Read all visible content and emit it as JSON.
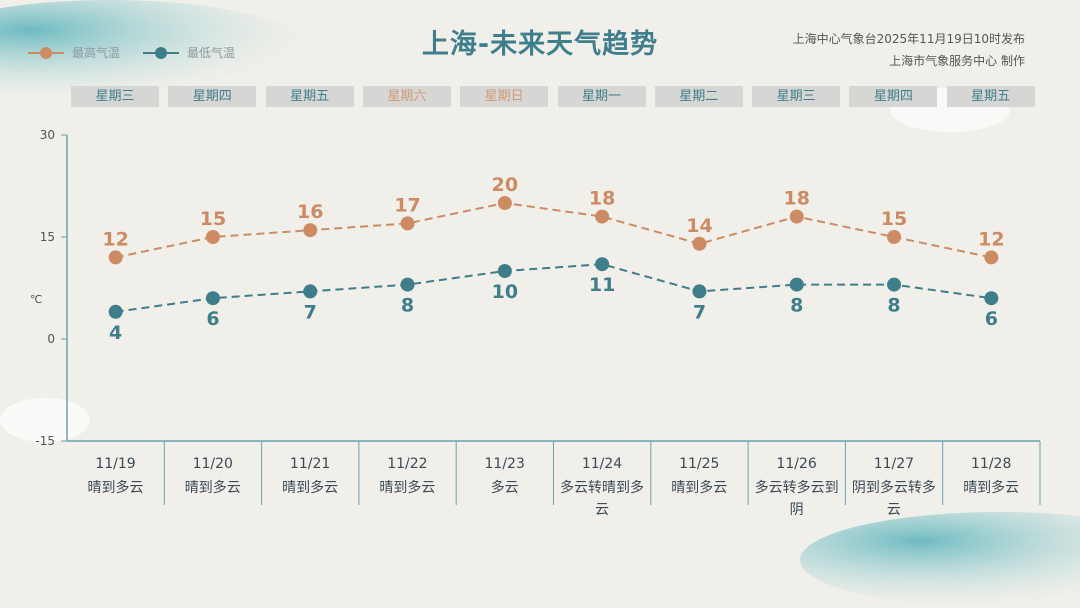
{
  "title": "上海-未来天气趋势",
  "publisher": {
    "line1": "上海中心气象台2025年11月19日10时发布",
    "line2": "上海市气象服务中心 制作"
  },
  "legend": [
    {
      "label": "最高气温",
      "color": "#cc8b62"
    },
    {
      "label": "最低气温",
      "color": "#3e7d8a"
    }
  ],
  "days": [
    {
      "weekday": "星期三",
      "date": "11/19",
      "weather": "晴到多云",
      "weekend": false
    },
    {
      "weekday": "星期四",
      "date": "11/20",
      "weather": "晴到多云",
      "weekend": false
    },
    {
      "weekday": "星期五",
      "date": "11/21",
      "weather": "晴到多云",
      "weekend": false
    },
    {
      "weekday": "星期六",
      "date": "11/22",
      "weather": "晴到多云",
      "weekend": true
    },
    {
      "weekday": "星期日",
      "date": "11/23",
      "weather": "多云",
      "weekend": true
    },
    {
      "weekday": "星期一",
      "date": "11/24",
      "weather": "多云转晴到多云",
      "weekend": false
    },
    {
      "weekday": "星期二",
      "date": "11/25",
      "weather": "晴到多云",
      "weekend": false
    },
    {
      "weekday": "星期三",
      "date": "11/26",
      "weather": "多云转多云到阴",
      "weekend": false
    },
    {
      "weekday": "星期四",
      "date": "11/27",
      "weather": "阴到多云转多云",
      "weekend": false
    },
    {
      "weekday": "星期五",
      "date": "11/28",
      "weather": "晴到多云",
      "weekend": false
    }
  ],
  "chart_data": {
    "type": "line",
    "categories": [
      "11/19",
      "11/20",
      "11/21",
      "11/22",
      "11/23",
      "11/24",
      "11/25",
      "11/26",
      "11/27",
      "11/28"
    ],
    "series": [
      {
        "name": "最高气温",
        "values": [
          12,
          15,
          16,
          17,
          20,
          18,
          14,
          18,
          15,
          12
        ],
        "color": "#cc8b62"
      },
      {
        "name": "最低气温",
        "values": [
          4,
          6,
          7,
          8,
          10,
          11,
          7,
          8,
          8,
          6
        ],
        "color": "#3e7d8a"
      }
    ],
    "ylabel": "℃",
    "ylim": [
      -15,
      30
    ],
    "yticks": [
      "30",
      "15",
      "0",
      "-15"
    ],
    "grid": false,
    "legend": "top-left"
  }
}
